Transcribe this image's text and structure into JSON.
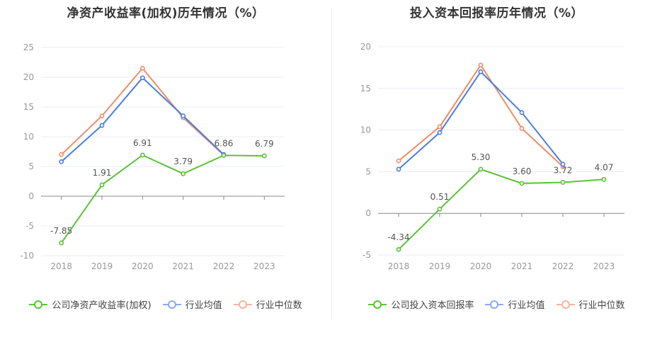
{
  "colors": {
    "company": "#5bc236",
    "industry_avg": "#4a7de0",
    "industry_median": "#f08c64"
  },
  "chart_data": [
    {
      "type": "line",
      "title": "净资产收益率(加权)历年情况（%）",
      "categories": [
        "2018",
        "2019",
        "2020",
        "2021",
        "2022",
        "2023"
      ],
      "ylim": [
        -10,
        25
      ],
      "yticks": [
        25,
        20,
        15,
        10,
        5,
        0,
        -5,
        -10
      ],
      "grid": true,
      "legend_position": "bottom",
      "series": [
        {
          "name": "公司净资产收益率(加权)",
          "color": "#5bc236",
          "values": [
            -7.85,
            1.91,
            6.91,
            3.79,
            6.86,
            6.79
          ],
          "labels": [
            "-7.85",
            "1.91",
            "6.91",
            "3.79",
            "6.86",
            "6.79"
          ]
        },
        {
          "name": "行业均值",
          "color": "#4a7de0",
          "values": [
            5.8,
            11.9,
            19.9,
            13.5,
            7.0,
            null
          ]
        },
        {
          "name": "行业中位数",
          "color": "#f08c64",
          "values": [
            7.0,
            13.5,
            21.5,
            13.2,
            6.9,
            null
          ]
        }
      ]
    },
    {
      "type": "line",
      "title": "投入资本回报率历年情况（%）",
      "categories": [
        "2018",
        "2019",
        "2020",
        "2021",
        "2022",
        "2023"
      ],
      "ylim": [
        -5,
        20
      ],
      "yticks": [
        20,
        15,
        10,
        5,
        0,
        -5
      ],
      "grid": true,
      "legend_position": "bottom",
      "series": [
        {
          "name": "公司投入资本回报率",
          "color": "#5bc236",
          "values": [
            -4.34,
            0.51,
            5.3,
            3.6,
            3.72,
            4.07
          ],
          "labels": [
            "-4.34",
            "0.51",
            "5.30",
            "3.60",
            "3.72",
            "4.07"
          ]
        },
        {
          "name": "行业均值",
          "color": "#4a7de0",
          "values": [
            5.3,
            9.7,
            17.0,
            12.1,
            5.9,
            null
          ]
        },
        {
          "name": "行业中位数",
          "color": "#f08c64",
          "values": [
            6.3,
            10.4,
            17.8,
            10.2,
            5.6,
            null
          ]
        }
      ]
    }
  ]
}
